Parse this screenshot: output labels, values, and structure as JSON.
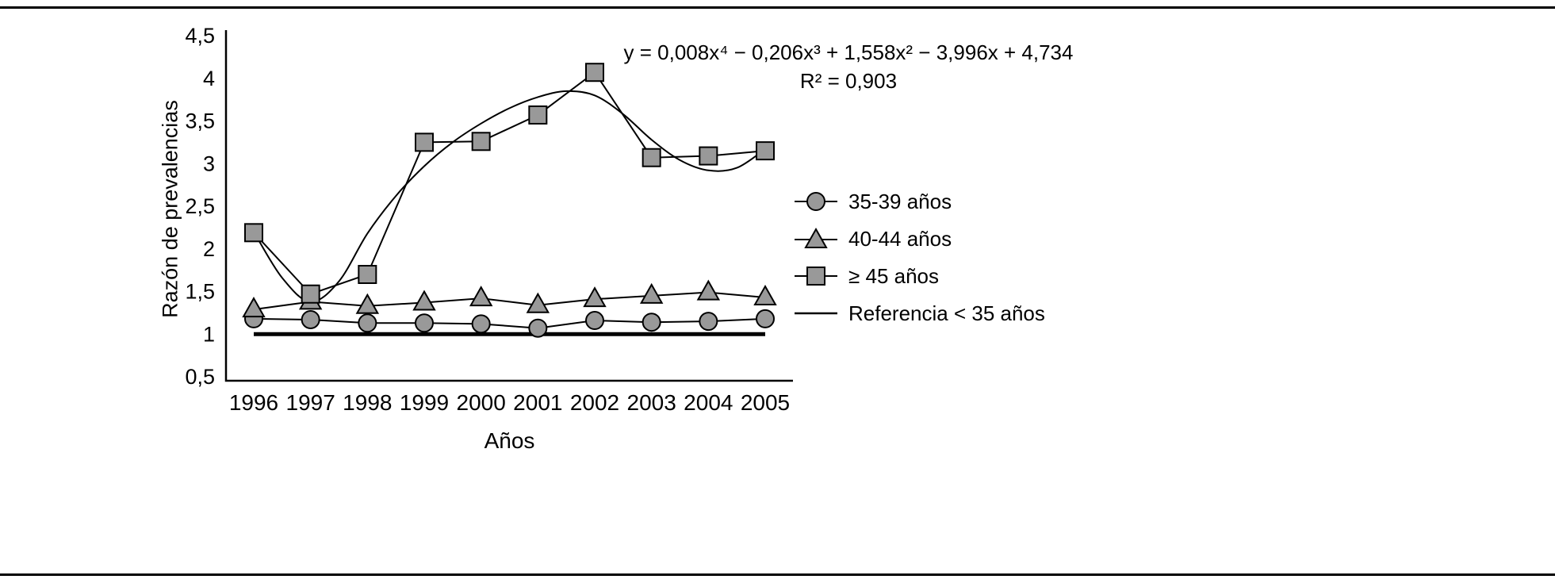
{
  "chart_data": {
    "type": "line",
    "title": "",
    "xlabel": "Años",
    "ylabel": "Razón de prevalencias",
    "categories": [
      "1996",
      "1997",
      "1998",
      "1999",
      "2000",
      "2001",
      "2002",
      "2003",
      "2004",
      "2005"
    ],
    "y_ticks": [
      {
        "v": 4.5,
        "label": "4,5"
      },
      {
        "v": 4.0,
        "label": "4"
      },
      {
        "v": 3.5,
        "label": "3,5"
      },
      {
        "v": 3.0,
        "label": "3"
      },
      {
        "v": 2.5,
        "label": "2,5"
      },
      {
        "v": 2.0,
        "label": "2"
      },
      {
        "v": 1.5,
        "label": "1,5"
      },
      {
        "v": 1.0,
        "label": "1"
      },
      {
        "v": 0.5,
        "label": "0,5"
      }
    ],
    "ylim": [
      0.5,
      4.5
    ],
    "grid": false,
    "legend_position": "right",
    "series": [
      {
        "name": "35-39 años",
        "marker": "circle",
        "values": [
          1.18,
          1.17,
          1.13,
          1.13,
          1.12,
          1.07,
          1.16,
          1.14,
          1.15,
          1.18
        ]
      },
      {
        "name": "40-44 años",
        "marker": "triangle",
        "values": [
          1.29,
          1.38,
          1.33,
          1.37,
          1.42,
          1.34,
          1.41,
          1.45,
          1.49,
          1.43
        ]
      },
      {
        "name": "≥ 45 años",
        "marker": "square",
        "values": [
          2.19,
          1.47,
          1.7,
          3.25,
          3.26,
          3.57,
          4.07,
          3.07,
          3.09,
          3.15
        ]
      }
    ],
    "reference": {
      "name": "Referencia < 35 años",
      "value": 1.0
    },
    "trend": {
      "equation": "y = 0,008x⁴ − 0,206x³ + 1,558x² − 3,996x + 4,734",
      "r2": "R² = 0,903",
      "points": [
        [
          0,
          2.2
        ],
        [
          0.5,
          1.66
        ],
        [
          1,
          1.38
        ],
        [
          1.5,
          1.62
        ],
        [
          2,
          2.18
        ],
        [
          2.5,
          2.62
        ],
        [
          3,
          2.97
        ],
        [
          3.5,
          3.25
        ],
        [
          4,
          3.47
        ],
        [
          4.5,
          3.65
        ],
        [
          5,
          3.78
        ],
        [
          5.5,
          3.85
        ],
        [
          6,
          3.8
        ],
        [
          6.5,
          3.58
        ],
        [
          7,
          3.28
        ],
        [
          7.5,
          3.04
        ],
        [
          8,
          2.92
        ],
        [
          8.5,
          2.95
        ],
        [
          9,
          3.17
        ]
      ]
    },
    "colors": {
      "line": "#000000",
      "marker_fill": "#999999",
      "marker_stroke": "#000000",
      "text": "#000000"
    }
  }
}
